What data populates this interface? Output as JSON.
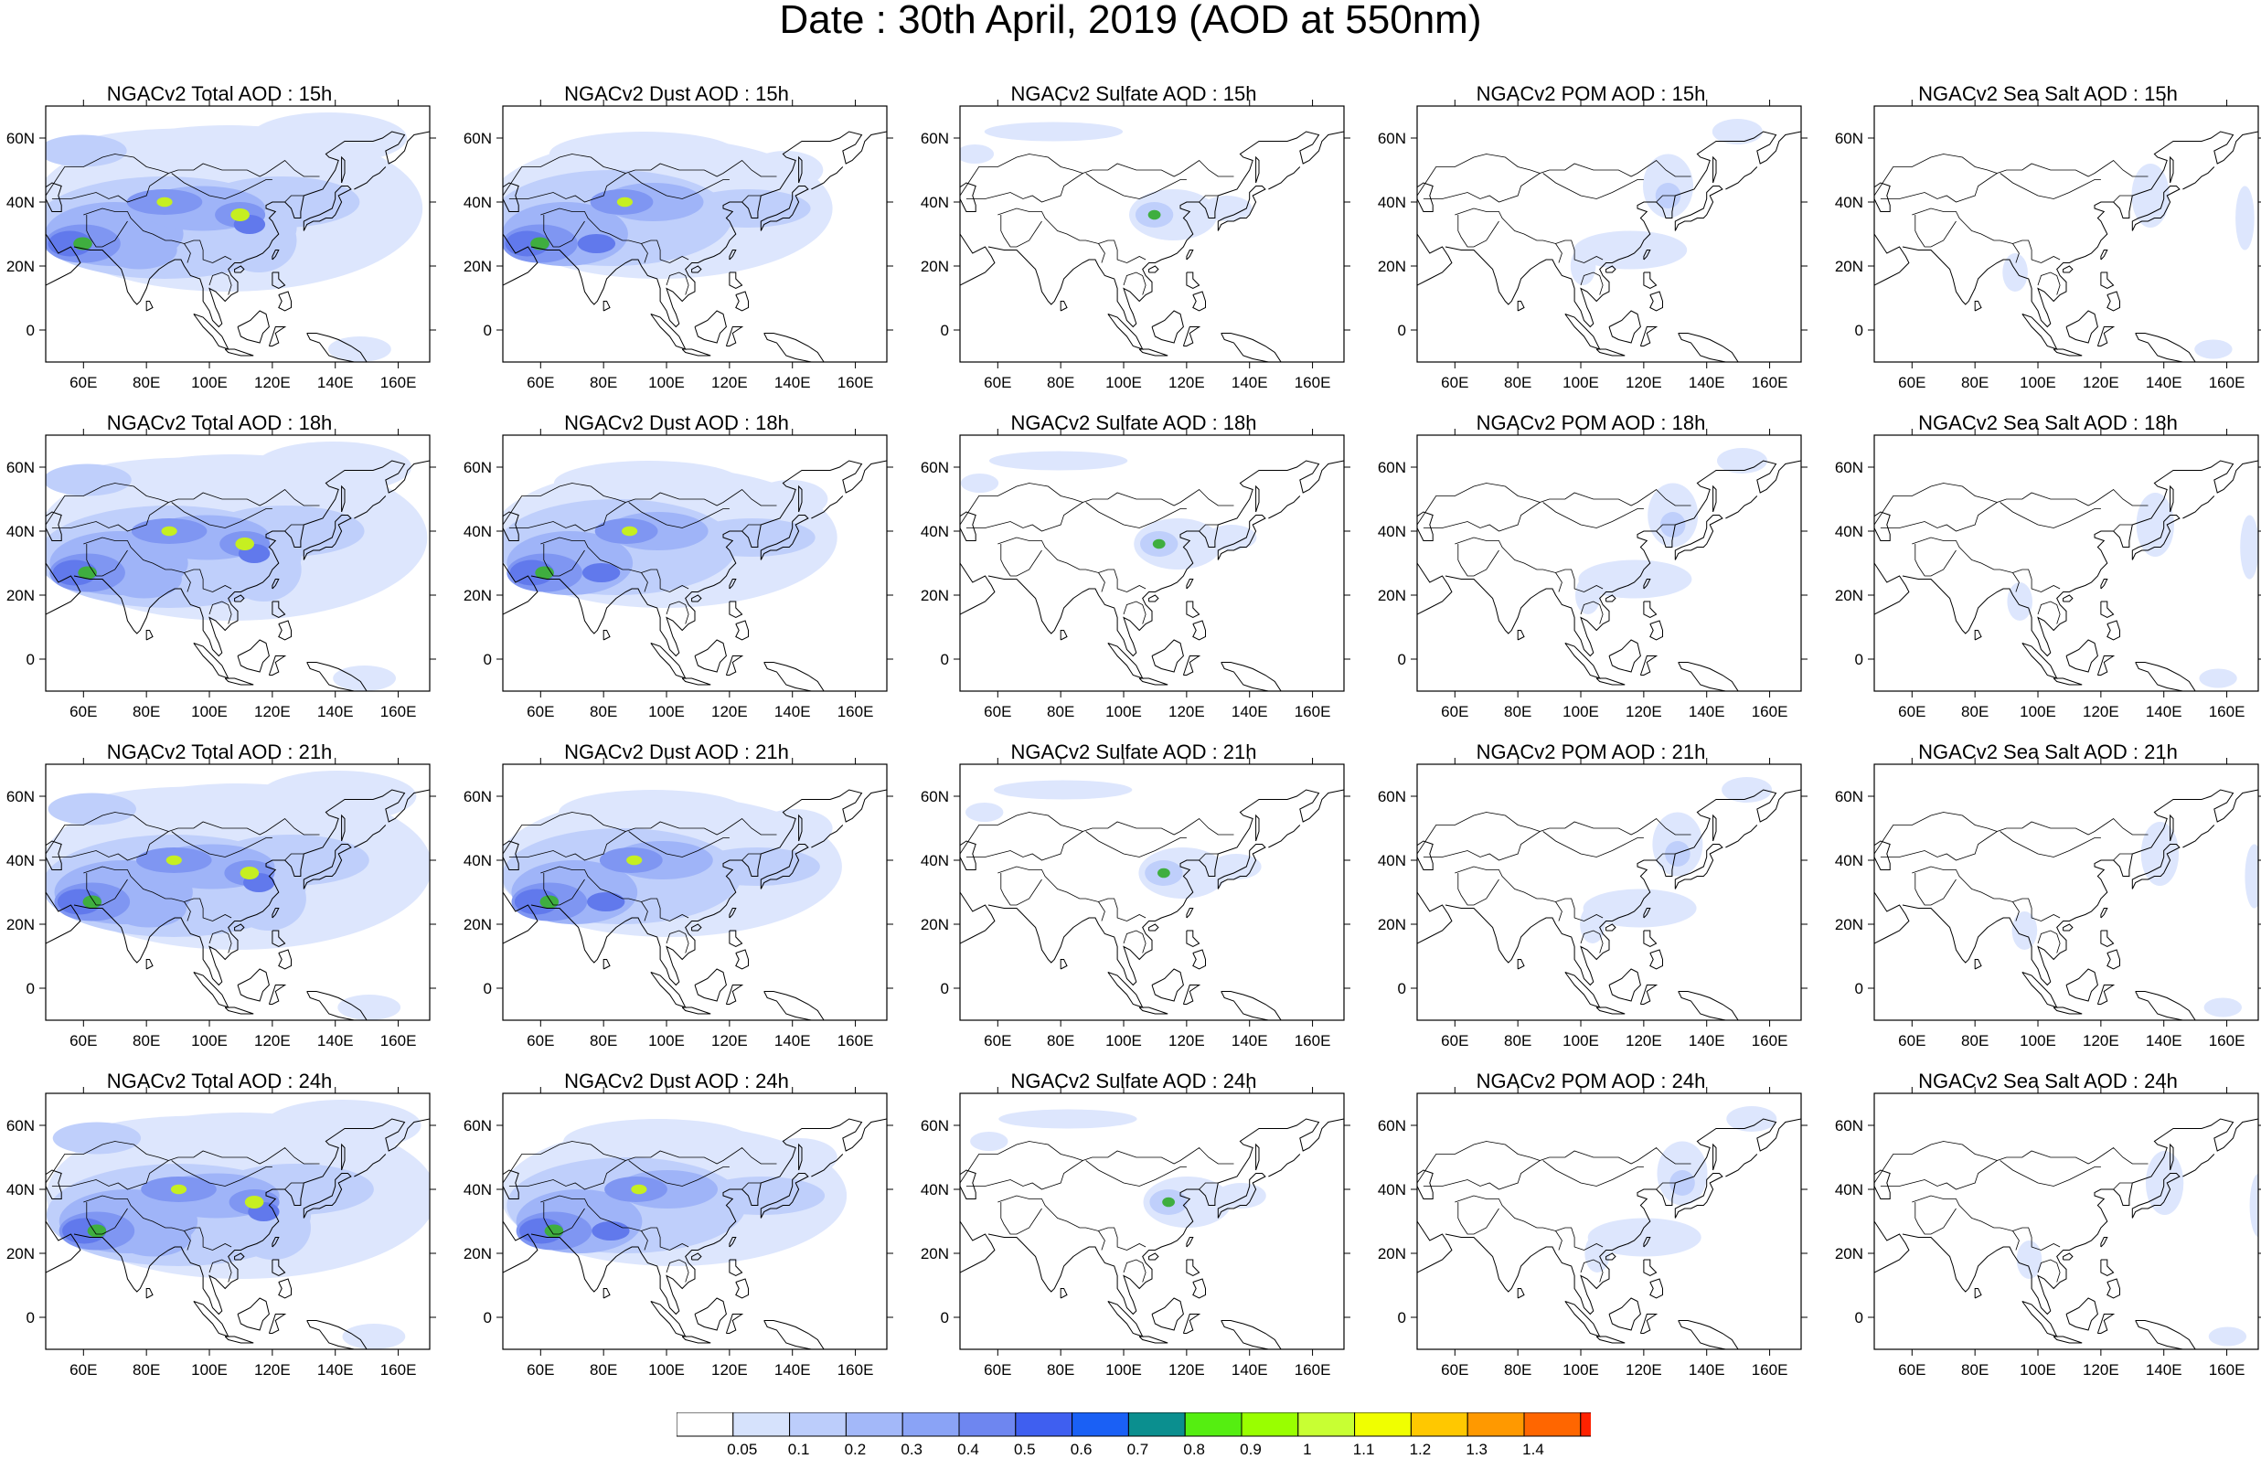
{
  "title": "Date : 30th April, 2019 (AOD at 550nm)",
  "panels": [
    [
      "NGACv2 Total AOD : 15h",
      "NGACv2 Dust AOD : 15h",
      "NGACv2 Sulfate AOD : 15h",
      "NGACv2 POM AOD : 15h",
      "NGACv2 Sea Salt AOD : 15h"
    ],
    [
      "NGACv2 Total AOD : 18h",
      "NGACv2 Dust AOD : 18h",
      "NGACv2 Sulfate AOD : 18h",
      "NGACv2 POM AOD : 18h",
      "NGACv2 Sea Salt AOD : 18h"
    ],
    [
      "NGACv2 Total AOD : 21h",
      "NGACv2 Dust AOD : 21h",
      "NGACv2 Sulfate AOD : 21h",
      "NGACv2 POM AOD : 21h",
      "NGACv2 Sea Salt AOD : 21h"
    ],
    [
      "NGACv2 Total AOD : 24h",
      "NGACv2 Dust AOD : 24h",
      "NGACv2 Sulfate AOD : 24h",
      "NGACv2 POM AOD : 24h",
      "NGACv2 Sea Salt  AOD : 24h"
    ]
  ],
  "axes": {
    "lon_ticks": [
      "60E",
      "80E",
      "100E",
      "120E",
      "140E",
      "160E"
    ],
    "lat_ticks": [
      "60N",
      "40N",
      "20N",
      "0"
    ],
    "lon_range": [
      48,
      170
    ],
    "lat_range": [
      -10,
      70
    ]
  },
  "colorbar": {
    "labels": [
      "0.05",
      "0.1",
      "0.2",
      "0.3",
      "0.4",
      "0.5",
      "0.6",
      "0.7",
      "0.8",
      "0.9",
      "1",
      "1.1",
      "1.2",
      "1.3",
      "1.4"
    ],
    "colors": [
      "#ffffff",
      "#d6e2fc",
      "#bccdfb",
      "#a3b8f9",
      "#8aa3f6",
      "#6e86f0",
      "#3f5ff0",
      "#1a60f5",
      "#0b8f8f",
      "#55ee11",
      "#99ff00",
      "#c8ff33",
      "#f0ff00",
      "#ffc800",
      "#ff9900",
      "#ff6600",
      "#ff2200"
    ]
  },
  "field_colors": {
    "faint": "#dde6fd",
    "light": "#bfcffb",
    "medium": "#9fb4f8",
    "strong": "#7f96f2",
    "deep": "#6179ec",
    "hot": "#3fae3f",
    "peak": "#c6ef21"
  }
}
